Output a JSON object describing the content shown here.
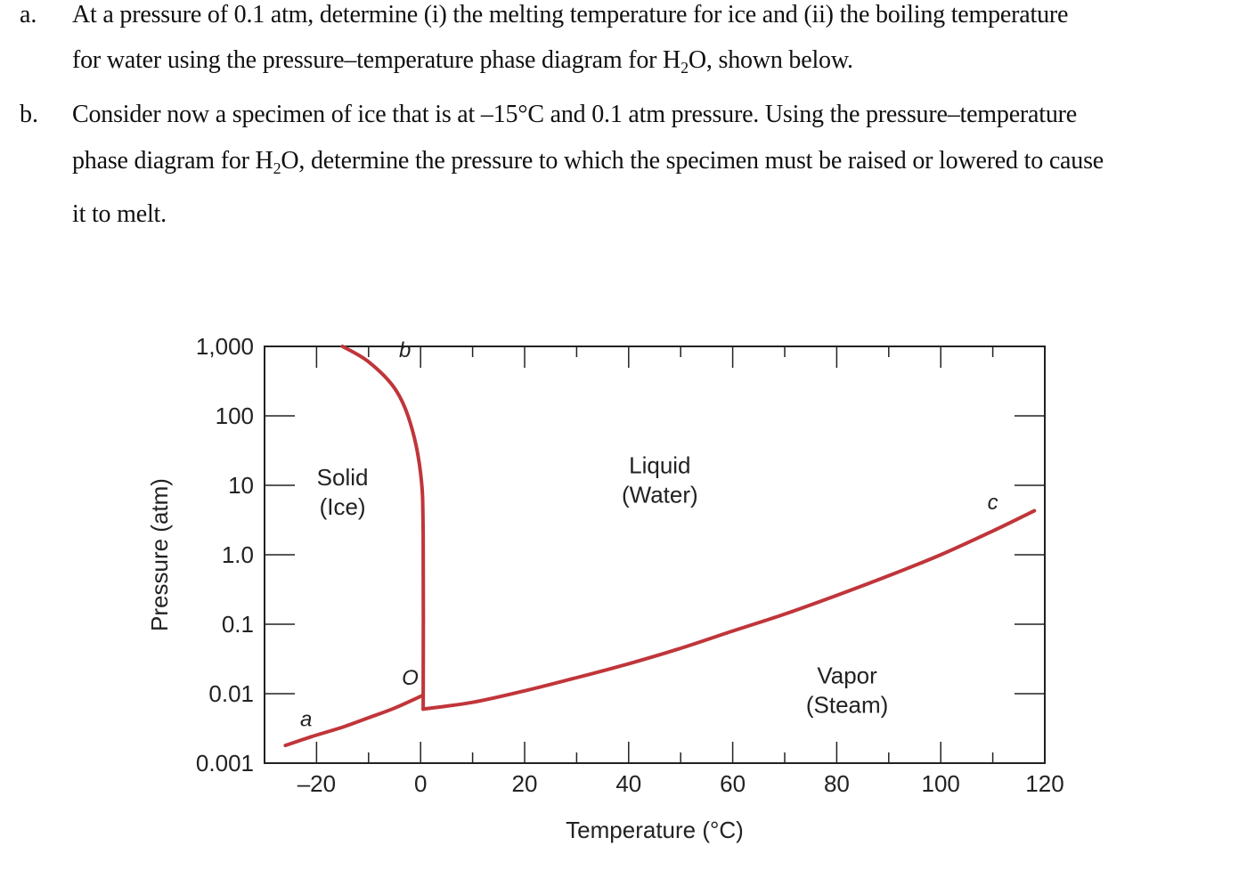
{
  "questions": [
    {
      "label": "a.",
      "lines": [
        [
          "At a pressure of 0.1 atm, determine (i) the melting temperature for ice and (ii) the boiling temperature"
        ],
        [
          "for water using the pressure–temperature phase diagram for H",
          "2",
          "O, shown below."
        ]
      ]
    },
    {
      "label": "b.",
      "lines": [
        [
          "Consider now a specimen of ice that is at –15°C and 0.1 atm pressure.  Using the pressure–temperature"
        ],
        [
          "phase diagram for H",
          "2",
          "O, determine the pressure to which the specimen must be raised or lowered to cause"
        ],
        [
          "it to melt."
        ]
      ]
    }
  ],
  "chart_data": {
    "type": "line",
    "title": "",
    "xlabel": "Temperature (°C)",
    "ylabel": "Pressure (atm)",
    "xlim": [
      -30,
      120
    ],
    "ylim": [
      0.001,
      1000
    ],
    "y_scale": "log",
    "x_ticks": [
      -20,
      0,
      20,
      40,
      60,
      80,
      100,
      120
    ],
    "x_tick_labels": [
      "–20",
      "0",
      "20",
      "40",
      "60",
      "80",
      "100",
      "120"
    ],
    "y_ticks": [
      0.001,
      0.01,
      0.1,
      1,
      10,
      100,
      1000
    ],
    "y_tick_labels": [
      "0.001",
      "0.01",
      "0.1",
      "1.0",
      "10",
      "100",
      "1,000"
    ],
    "line_color": "#c0353a",
    "curves": [
      {
        "name": "sublimation",
        "points": [
          [
            -26,
            0.0018
          ],
          [
            -21,
            0.0024
          ],
          [
            -15,
            0.0033
          ],
          [
            -10,
            0.0045
          ],
          [
            -5,
            0.0062
          ],
          [
            0.5,
            0.0095
          ]
        ]
      },
      {
        "name": "melting",
        "points": [
          [
            -15,
            1000
          ],
          [
            -10,
            600
          ],
          [
            -5,
            250
          ],
          [
            -2,
            80
          ],
          [
            0,
            15
          ],
          [
            0.5,
            2
          ],
          [
            0.5,
            0.006
          ]
        ]
      },
      {
        "name": "vaporization",
        "points": [
          [
            0.5,
            0.006
          ],
          [
            10,
            0.0075
          ],
          [
            20,
            0.011
          ],
          [
            30,
            0.017
          ],
          [
            40,
            0.027
          ],
          [
            50,
            0.045
          ],
          [
            60,
            0.08
          ],
          [
            70,
            0.14
          ],
          [
            80,
            0.26
          ],
          [
            90,
            0.5
          ],
          [
            100,
            1.0
          ],
          [
            110,
            2.2
          ],
          [
            118,
            4.3
          ]
        ]
      }
    ],
    "regions": [
      {
        "text": [
          "Solid",
          "(Ice)"
        ],
        "x": -15,
        "y": 10
      },
      {
        "text": [
          "Liquid",
          "(Water)"
        ],
        "x": 46,
        "y": 15
      },
      {
        "text": [
          "Vapor",
          "(Steam)"
        ],
        "x": 82,
        "y": 0.014
      }
    ],
    "points": [
      {
        "label": "a",
        "x": -22,
        "y": 0.0034
      },
      {
        "label": "b",
        "x": -3,
        "y": 700
      },
      {
        "label": "O",
        "x": -2,
        "y": 0.0135
      },
      {
        "label": "c",
        "x": 110,
        "y": 4.5
      }
    ]
  }
}
